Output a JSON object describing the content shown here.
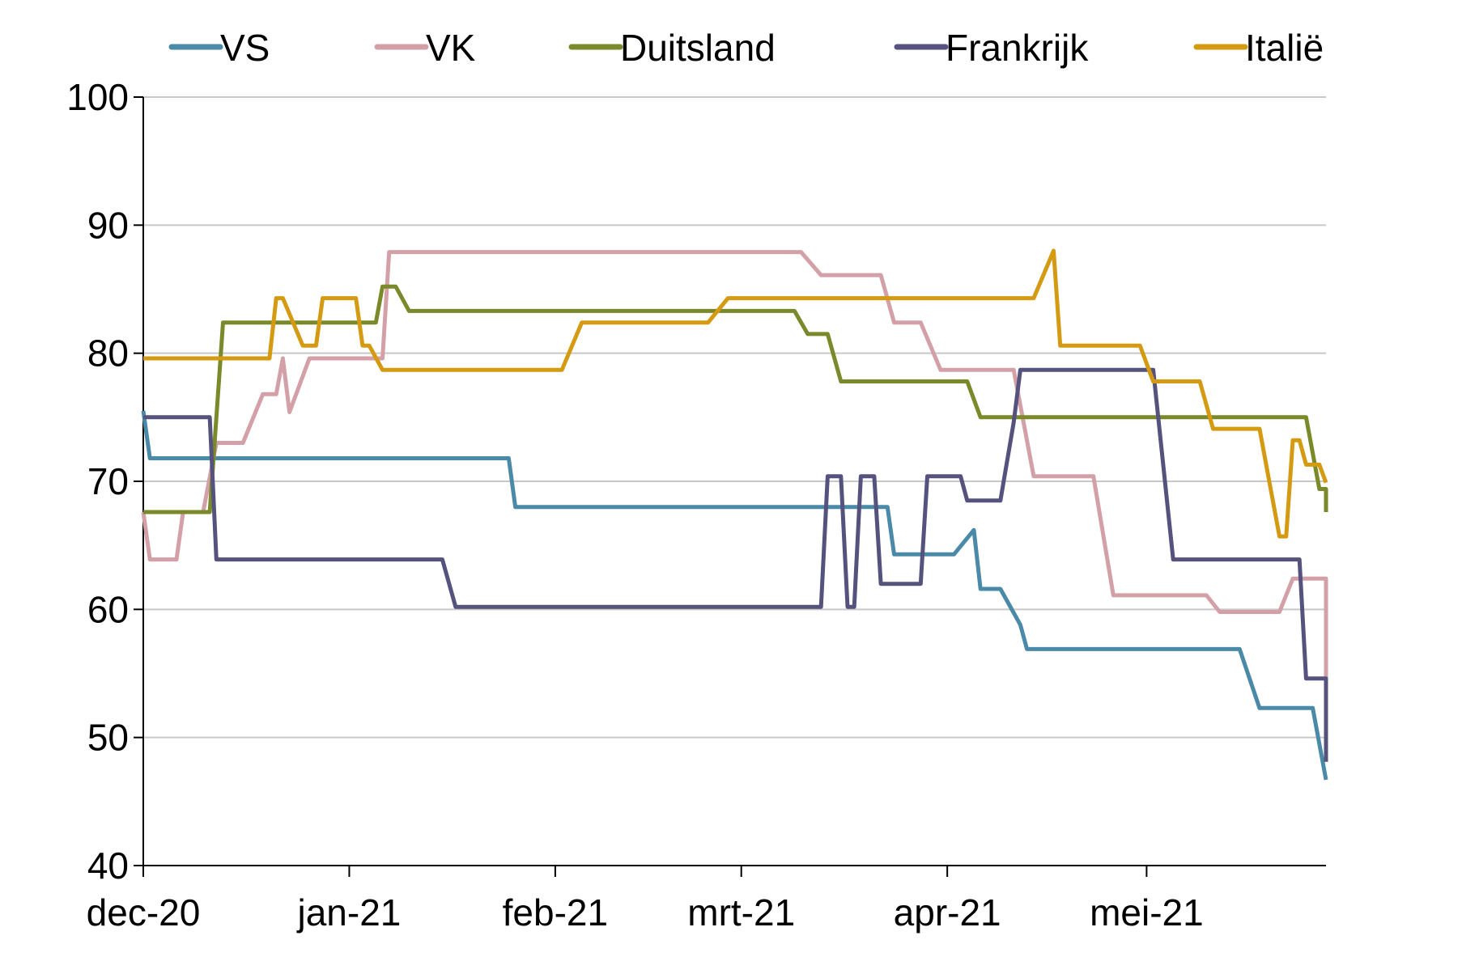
{
  "chart_data": {
    "type": "line",
    "title": "",
    "xlabel": "",
    "ylabel": "",
    "ylim": [
      40,
      100
    ],
    "yticks": [
      40,
      50,
      60,
      70,
      80,
      90,
      100
    ],
    "ytick_labels": [
      "40",
      "50",
      "60",
      "70",
      "80",
      "90",
      "100"
    ],
    "xlim": [
      "2020-12-01",
      "2021-05-28"
    ],
    "xticks": [
      {
        "date": "2020-12-01",
        "label": "dec-20"
      },
      {
        "date": "2021-01-01",
        "label": "jan-21"
      },
      {
        "date": "2021-02-01",
        "label": "feb-21"
      },
      {
        "date": "2021-03-01",
        "label": "mrt-21"
      },
      {
        "date": "2021-04-01",
        "label": "apr-21"
      },
      {
        "date": "2021-05-01",
        "label": "mei-21"
      }
    ],
    "grid": "horizontal",
    "legend_position": "top",
    "series": [
      {
        "name": "VS",
        "color": "#4a8aa8",
        "points": [
          [
            "2020-12-01",
            75.5
          ],
          [
            "2020-12-02",
            71.8
          ],
          [
            "2021-01-25",
            71.8
          ],
          [
            "2021-01-26",
            68.0
          ],
          [
            "2021-03-23",
            68.0
          ],
          [
            "2021-03-24",
            64.3
          ],
          [
            "2021-04-02",
            64.3
          ],
          [
            "2021-04-05",
            66.2
          ],
          [
            "2021-04-06",
            61.6
          ],
          [
            "2021-04-09",
            61.6
          ],
          [
            "2021-04-12",
            58.8
          ],
          [
            "2021-04-13",
            56.9
          ],
          [
            "2021-05-15",
            56.9
          ],
          [
            "2021-05-18",
            52.3
          ],
          [
            "2021-05-26",
            52.3
          ],
          [
            "2021-05-29",
            46.7
          ],
          [
            "2021-05-28",
            46.7
          ]
        ]
      },
      {
        "name": "VK",
        "color": "#d4a0a8",
        "points": [
          [
            "2020-12-01",
            67.6
          ],
          [
            "2020-12-02",
            63.9
          ],
          [
            "2020-12-06",
            63.9
          ],
          [
            "2020-12-07",
            67.6
          ],
          [
            "2020-12-10",
            67.6
          ],
          [
            "2020-12-12",
            73.0
          ],
          [
            "2020-12-16",
            73.0
          ],
          [
            "2020-12-19",
            76.8
          ],
          [
            "2020-12-21",
            76.8
          ],
          [
            "2020-12-22",
            79.6
          ],
          [
            "2020-12-23",
            75.4
          ],
          [
            "2020-12-26",
            79.6
          ],
          [
            "2021-01-06",
            79.6
          ],
          [
            "2021-01-07",
            87.9
          ],
          [
            "2021-03-10",
            87.9
          ],
          [
            "2021-03-13",
            86.1
          ],
          [
            "2021-03-22",
            86.1
          ],
          [
            "2021-03-24",
            82.4
          ],
          [
            "2021-03-28",
            82.4
          ],
          [
            "2021-03-31",
            78.7
          ],
          [
            "2021-04-11",
            78.7
          ],
          [
            "2021-04-14",
            70.4
          ],
          [
            "2021-04-23",
            70.4
          ],
          [
            "2021-04-26",
            61.1
          ],
          [
            "2021-05-10",
            61.1
          ],
          [
            "2021-05-12",
            59.8
          ],
          [
            "2021-05-21",
            59.8
          ],
          [
            "2021-05-23",
            62.4
          ],
          [
            "2021-05-28",
            62.4
          ],
          [
            "2021-05-31",
            51.4
          ],
          [
            "2021-05-28",
            51.4
          ]
        ]
      },
      {
        "name": "Duitsland",
        "color": "#7a8a2a",
        "points": [
          [
            "2020-12-01",
            67.6
          ],
          [
            "2020-12-11",
            67.6
          ],
          [
            "2020-12-13",
            82.4
          ],
          [
            "2021-01-05",
            82.4
          ],
          [
            "2021-01-06",
            85.2
          ],
          [
            "2021-01-08",
            85.2
          ],
          [
            "2021-01-10",
            83.3
          ],
          [
            "2021-03-09",
            83.3
          ],
          [
            "2021-03-11",
            81.5
          ],
          [
            "2021-03-14",
            81.5
          ],
          [
            "2021-03-16",
            77.8
          ],
          [
            "2021-04-04",
            77.8
          ],
          [
            "2021-04-06",
            75.0
          ],
          [
            "2021-05-25",
            75.0
          ],
          [
            "2021-05-27",
            69.4
          ],
          [
            "2021-05-28",
            69.4
          ],
          [
            "2021-05-29",
            67.6
          ],
          [
            "2021-05-28",
            67.6
          ]
        ]
      },
      {
        "name": "Frankrijk",
        "color": "#55527e",
        "points": [
          [
            "2020-12-01",
            75.0
          ],
          [
            "2020-12-11",
            75.0
          ],
          [
            "2020-12-12",
            63.9
          ],
          [
            "2021-01-15",
            63.9
          ],
          [
            "2021-01-17",
            60.2
          ],
          [
            "2021-03-13",
            60.2
          ],
          [
            "2021-03-14",
            70.4
          ],
          [
            "2021-03-16",
            70.4
          ],
          [
            "2021-03-17",
            60.2
          ],
          [
            "2021-03-18",
            60.2
          ],
          [
            "2021-03-19",
            70.4
          ],
          [
            "2021-03-21",
            70.4
          ],
          [
            "2021-03-22",
            62.0
          ],
          [
            "2021-03-28",
            62.0
          ],
          [
            "2021-03-29",
            70.4
          ],
          [
            "2021-04-03",
            70.4
          ],
          [
            "2021-04-04",
            68.5
          ],
          [
            "2021-04-09",
            68.5
          ],
          [
            "2021-04-11",
            74.6
          ],
          [
            "2021-04-12",
            78.7
          ],
          [
            "2021-05-02",
            78.7
          ],
          [
            "2021-05-05",
            63.9
          ],
          [
            "2021-05-24",
            63.9
          ],
          [
            "2021-05-25",
            54.6
          ],
          [
            "2021-05-30",
            54.6
          ],
          [
            "2021-05-31",
            51.8
          ],
          [
            "2021-05-28",
            51.8
          ],
          [
            "2021-05-28",
            48.1
          ]
        ]
      },
      {
        "name": "Italië",
        "color": "#d49a12",
        "points": [
          [
            "2020-12-01",
            79.6
          ],
          [
            "2020-12-20",
            79.6
          ],
          [
            "2020-12-21",
            84.3
          ],
          [
            "2020-12-22",
            84.3
          ],
          [
            "2020-12-25",
            80.6
          ],
          [
            "2020-12-27",
            80.6
          ],
          [
            "2020-12-28",
            84.3
          ],
          [
            "2021-01-02",
            84.3
          ],
          [
            "2021-01-03",
            80.6
          ],
          [
            "2021-01-04",
            80.6
          ],
          [
            "2021-01-06",
            78.7
          ],
          [
            "2021-02-02",
            78.7
          ],
          [
            "2021-02-05",
            82.4
          ],
          [
            "2021-02-24",
            82.4
          ],
          [
            "2021-02-27",
            84.3
          ],
          [
            "2021-04-14",
            84.3
          ],
          [
            "2021-04-17",
            88.0
          ],
          [
            "2021-04-18",
            80.6
          ],
          [
            "2021-04-30",
            80.6
          ],
          [
            "2021-05-02",
            77.8
          ],
          [
            "2021-05-09",
            77.8
          ],
          [
            "2021-05-11",
            74.1
          ],
          [
            "2021-05-18",
            74.1
          ],
          [
            "2021-05-21",
            65.7
          ],
          [
            "2021-05-22",
            65.7
          ],
          [
            "2021-05-23",
            73.2
          ],
          [
            "2021-05-24",
            73.2
          ],
          [
            "2021-05-25",
            71.3
          ],
          [
            "2021-05-27",
            71.3
          ],
          [
            "2021-05-28",
            69.9
          ]
        ]
      }
    ]
  }
}
